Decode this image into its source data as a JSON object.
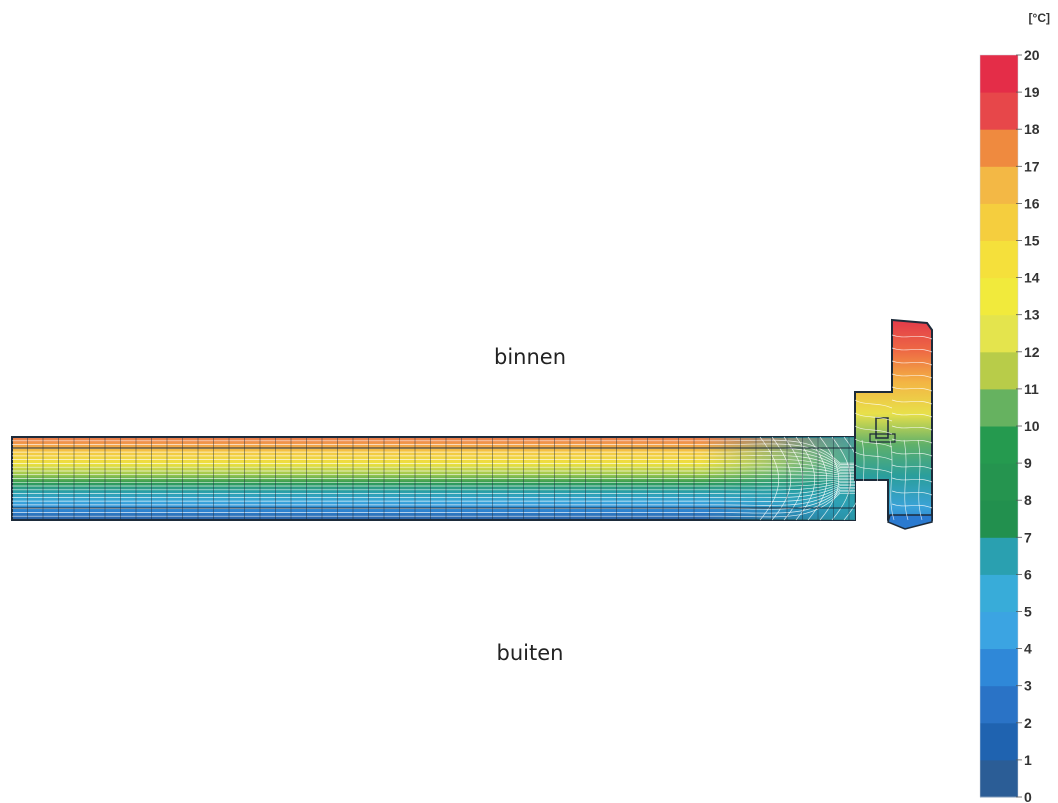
{
  "labels": {
    "inside": "binnen",
    "outside": "buiten"
  },
  "legend": {
    "unit": "[°C]",
    "min": 0,
    "max": 20,
    "ticks": [
      "20",
      "19",
      "18",
      "17",
      "16",
      "15",
      "14",
      "13",
      "12",
      "11",
      "10",
      "9",
      "8",
      "7",
      "6",
      "5",
      "4",
      "3",
      "2",
      "1",
      "0"
    ],
    "band_colors": [
      "#2b5d96",
      "#1f63b0",
      "#2a73c6",
      "#2f88d8",
      "#3ba4e2",
      "#38acd9",
      "#2aa0b0",
      "#22904e",
      "#25944f",
      "#259a4f",
      "#66b260",
      "#b8cc49",
      "#e4e44d",
      "#f1ea3c",
      "#f5e03b",
      "#f5ce3e",
      "#f3b845",
      "#ef8a3f",
      "#e7474a",
      "#e42d48"
    ]
  }
}
